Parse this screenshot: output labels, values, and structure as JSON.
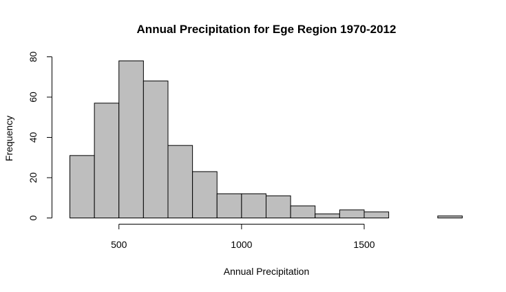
{
  "chart_data": {
    "type": "bar",
    "title": "Annual Precipitation for Ege Region 1970-2012",
    "xlabel": "Annual Precipitation",
    "ylabel": "Frequency",
    "bin_width": 100,
    "bins": [
      {
        "start": 300,
        "end": 400,
        "count": 31
      },
      {
        "start": 400,
        "end": 500,
        "count": 57
      },
      {
        "start": 500,
        "end": 600,
        "count": 78
      },
      {
        "start": 600,
        "end": 700,
        "count": 68
      },
      {
        "start": 700,
        "end": 800,
        "count": 36
      },
      {
        "start": 800,
        "end": 900,
        "count": 23
      },
      {
        "start": 900,
        "end": 1000,
        "count": 12
      },
      {
        "start": 1000,
        "end": 1100,
        "count": 12
      },
      {
        "start": 1100,
        "end": 1200,
        "count": 11
      },
      {
        "start": 1200,
        "end": 1300,
        "count": 6
      },
      {
        "start": 1300,
        "end": 1400,
        "count": 2
      },
      {
        "start": 1400,
        "end": 1500,
        "count": 4
      },
      {
        "start": 1500,
        "end": 1600,
        "count": 3
      },
      {
        "start": 1600,
        "end": 1700,
        "count": 0
      },
      {
        "start": 1700,
        "end": 1800,
        "count": 0
      },
      {
        "start": 1800,
        "end": 1900,
        "count": 1
      }
    ],
    "x_ticks": [
      500,
      1000,
      1500
    ],
    "x_ticks_labels": [
      "500",
      "1000",
      "1500"
    ],
    "y_ticks": [
      0,
      20,
      40,
      60,
      80
    ],
    "y_ticks_labels": [
      "0",
      "20",
      "40",
      "60",
      "80"
    ],
    "xlim": [
      300,
      1900
    ],
    "ylim": [
      0,
      80
    ],
    "bar_color": "#bebebe",
    "grid": false,
    "legend": "none"
  }
}
